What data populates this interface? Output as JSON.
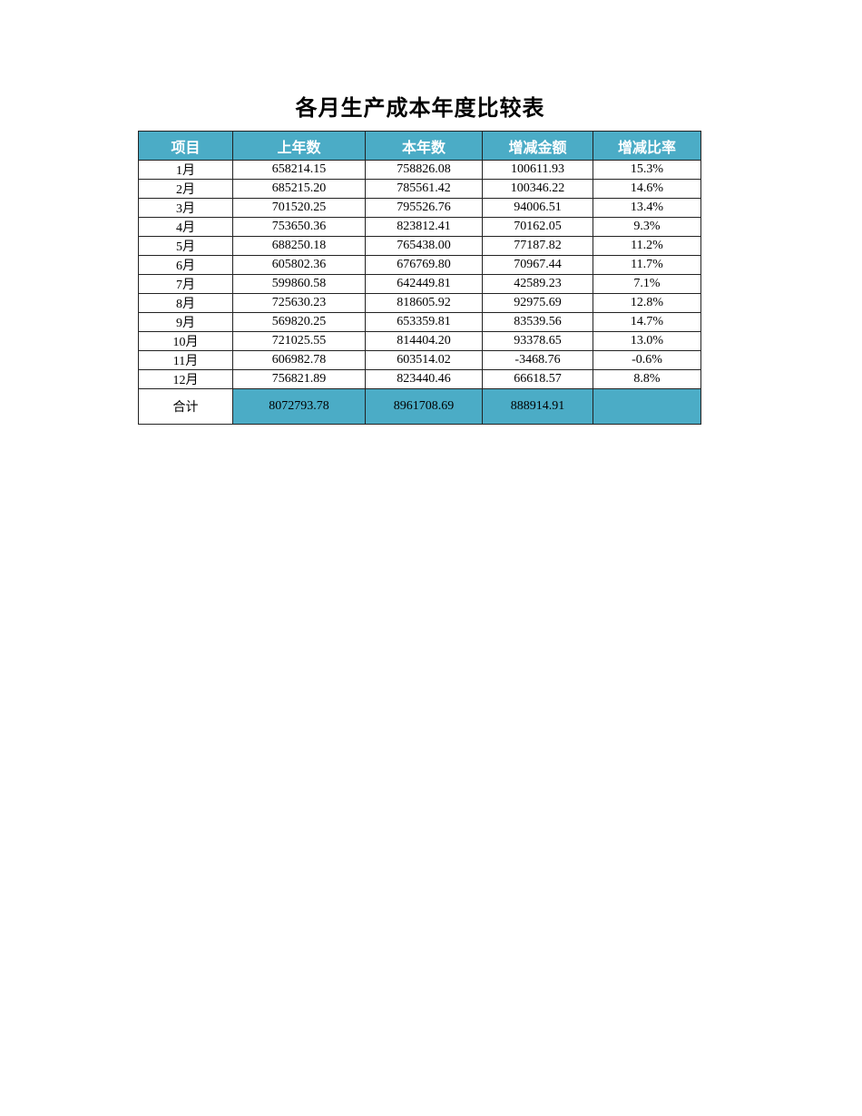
{
  "title": "各月生产成本年度比较表",
  "colors": {
    "header_bg": "#4BACC6",
    "header_text": "#FFFFFF",
    "total_bg": "#4BACC6"
  },
  "table": {
    "headers": [
      "项目",
      "上年数",
      "本年数",
      "增减金额",
      "增减比率"
    ],
    "rows": [
      [
        "1月",
        "658214.15",
        "758826.08",
        "100611.93",
        "15.3%"
      ],
      [
        "2月",
        "685215.20",
        "785561.42",
        "100346.22",
        "14.6%"
      ],
      [
        "3月",
        "701520.25",
        "795526.76",
        "94006.51",
        "13.4%"
      ],
      [
        "4月",
        "753650.36",
        "823812.41",
        "70162.05",
        "9.3%"
      ],
      [
        "5月",
        "688250.18",
        "765438.00",
        "77187.82",
        "11.2%"
      ],
      [
        "6月",
        "605802.36",
        "676769.80",
        "70967.44",
        "11.7%"
      ],
      [
        "7月",
        "599860.58",
        "642449.81",
        "42589.23",
        "7.1%"
      ],
      [
        "8月",
        "725630.23",
        "818605.92",
        "92975.69",
        "12.8%"
      ],
      [
        "9月",
        "569820.25",
        "653359.81",
        "83539.56",
        "14.7%"
      ],
      [
        "10月",
        "721025.55",
        "814404.20",
        "93378.65",
        "13.0%"
      ],
      [
        "11月",
        "606982.78",
        "603514.02",
        "-3468.76",
        "-0.6%"
      ],
      [
        "12月",
        "756821.89",
        "823440.46",
        "66618.57",
        "8.8%"
      ]
    ],
    "total": [
      "合计",
      "8072793.78",
      "8961708.69",
      "888914.91",
      ""
    ]
  }
}
